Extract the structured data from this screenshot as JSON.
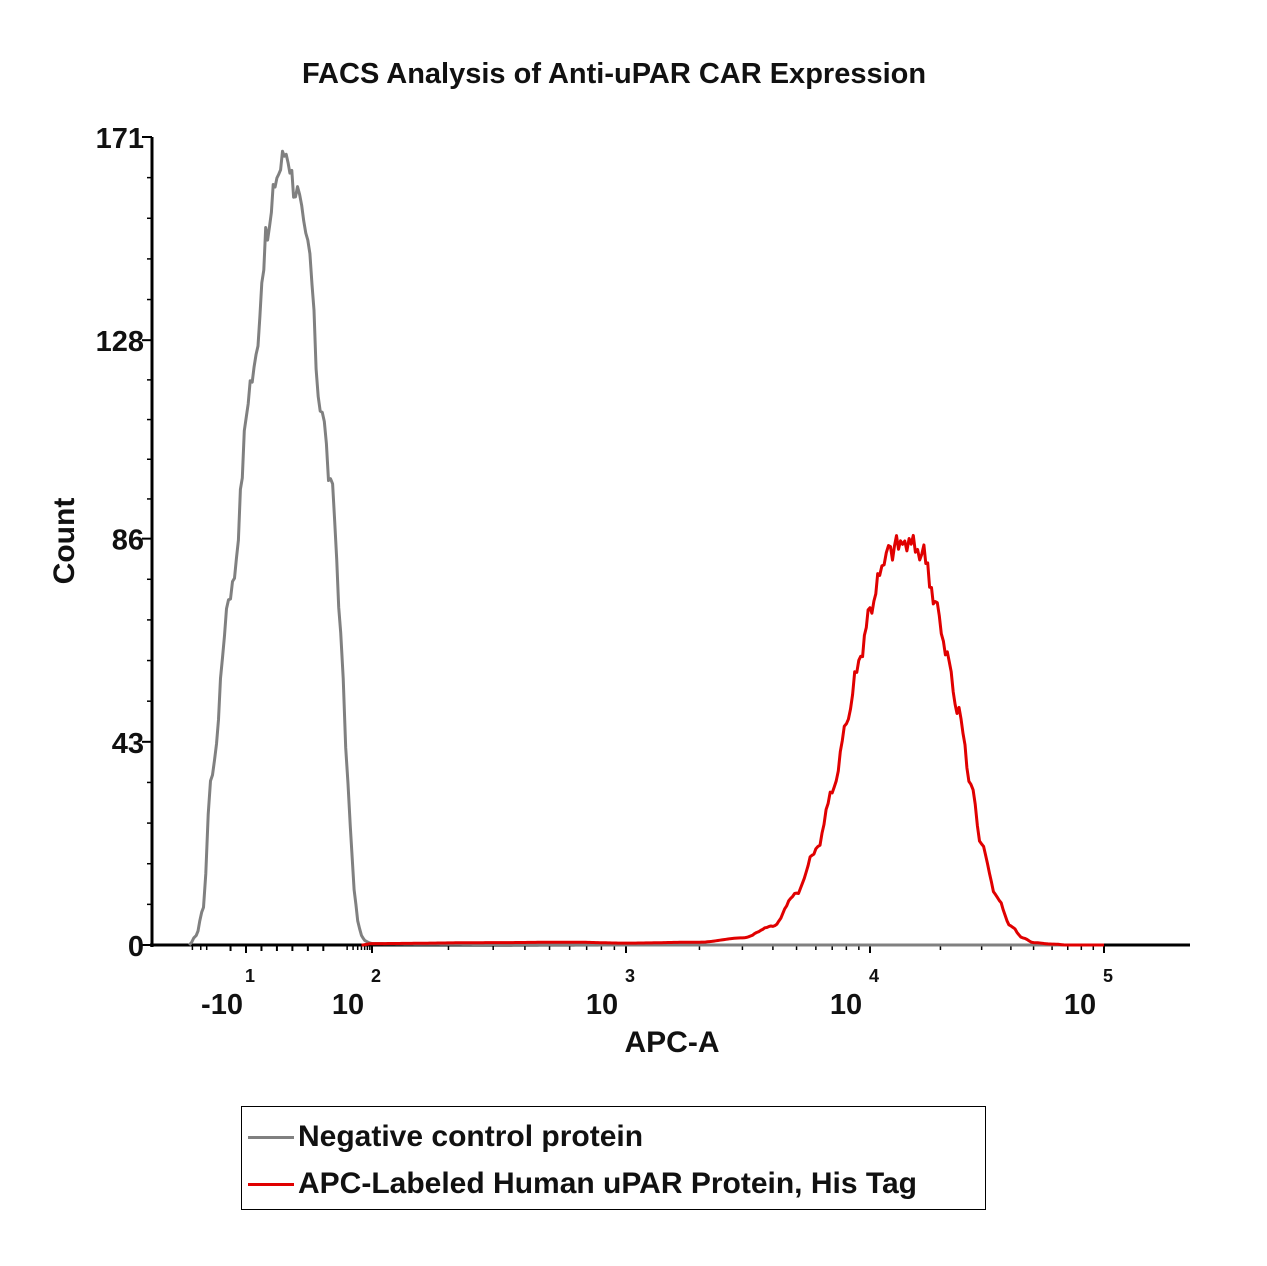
{
  "chart_data": {
    "type": "line",
    "title": "FACS Analysis of Anti-uPAR CAR Expression",
    "xlabel": "APC-A",
    "ylabel": "Count",
    "x_scale": "biexponential",
    "ylim": [
      0,
      171
    ],
    "y_ticks": [
      "0",
      "43",
      "86",
      "128",
      "171"
    ],
    "x_ticks": [
      {
        "value": -10,
        "base": "-10",
        "exp": "1"
      },
      {
        "value": 100,
        "base": "10",
        "exp": "2"
      },
      {
        "value": 1000,
        "base": "10",
        "exp": "3"
      },
      {
        "value": 10000,
        "base": "10",
        "exp": "4"
      },
      {
        "value": 100000,
        "base": "10",
        "exp": "5"
      }
    ],
    "grid": false,
    "legend_position": "bottom",
    "series": [
      {
        "name": "Negative control protein",
        "color": "#808080",
        "x": [
          -70,
          -50,
          -35,
          -25,
          -15,
          -8,
          -3,
          0,
          3,
          6,
          10,
          14,
          18,
          22,
          28,
          35,
          42,
          50,
          60,
          70,
          85,
          100,
          150,
          300,
          1000,
          5000,
          100000
        ],
        "y": [
          0,
          2,
          8,
          35,
          75,
          120,
          150,
          163,
          168,
          160,
          148,
          115,
          95,
          68,
          42,
          25,
          12,
          5,
          2,
          1,
          0.5,
          0.3,
          0.2,
          0.1,
          0,
          0,
          0
        ]
      },
      {
        "name": "APC-Labeled Human uPAR Protein, His Tag",
        "color": "#e00000",
        "x": [
          60,
          100,
          300,
          600,
          1000,
          2000,
          3000,
          4000,
          5000,
          6000,
          7000,
          8000,
          9000,
          10000,
          11000,
          12000,
          13500,
          15000,
          17000,
          19000,
          21000,
          24000,
          27000,
          30000,
          35000,
          40000,
          45000,
          50000,
          60000,
          70000,
          100000
        ],
        "y": [
          0,
          0.3,
          0.5,
          0.6,
          0.4,
          0.6,
          1.5,
          4,
          11,
          20,
          32,
          47,
          60,
          71,
          78,
          83,
          85,
          84.5,
          83,
          73,
          62,
          49,
          34,
          21,
          10,
          4,
          1.5,
          0.5,
          0.2,
          0,
          0
        ]
      }
    ]
  },
  "legend": {
    "items": [
      {
        "label": "Negative control protein",
        "color": "#808080"
      },
      {
        "label": "APC-Labeled Human uPAR Protein, His Tag",
        "color": "#e00000"
      }
    ]
  }
}
